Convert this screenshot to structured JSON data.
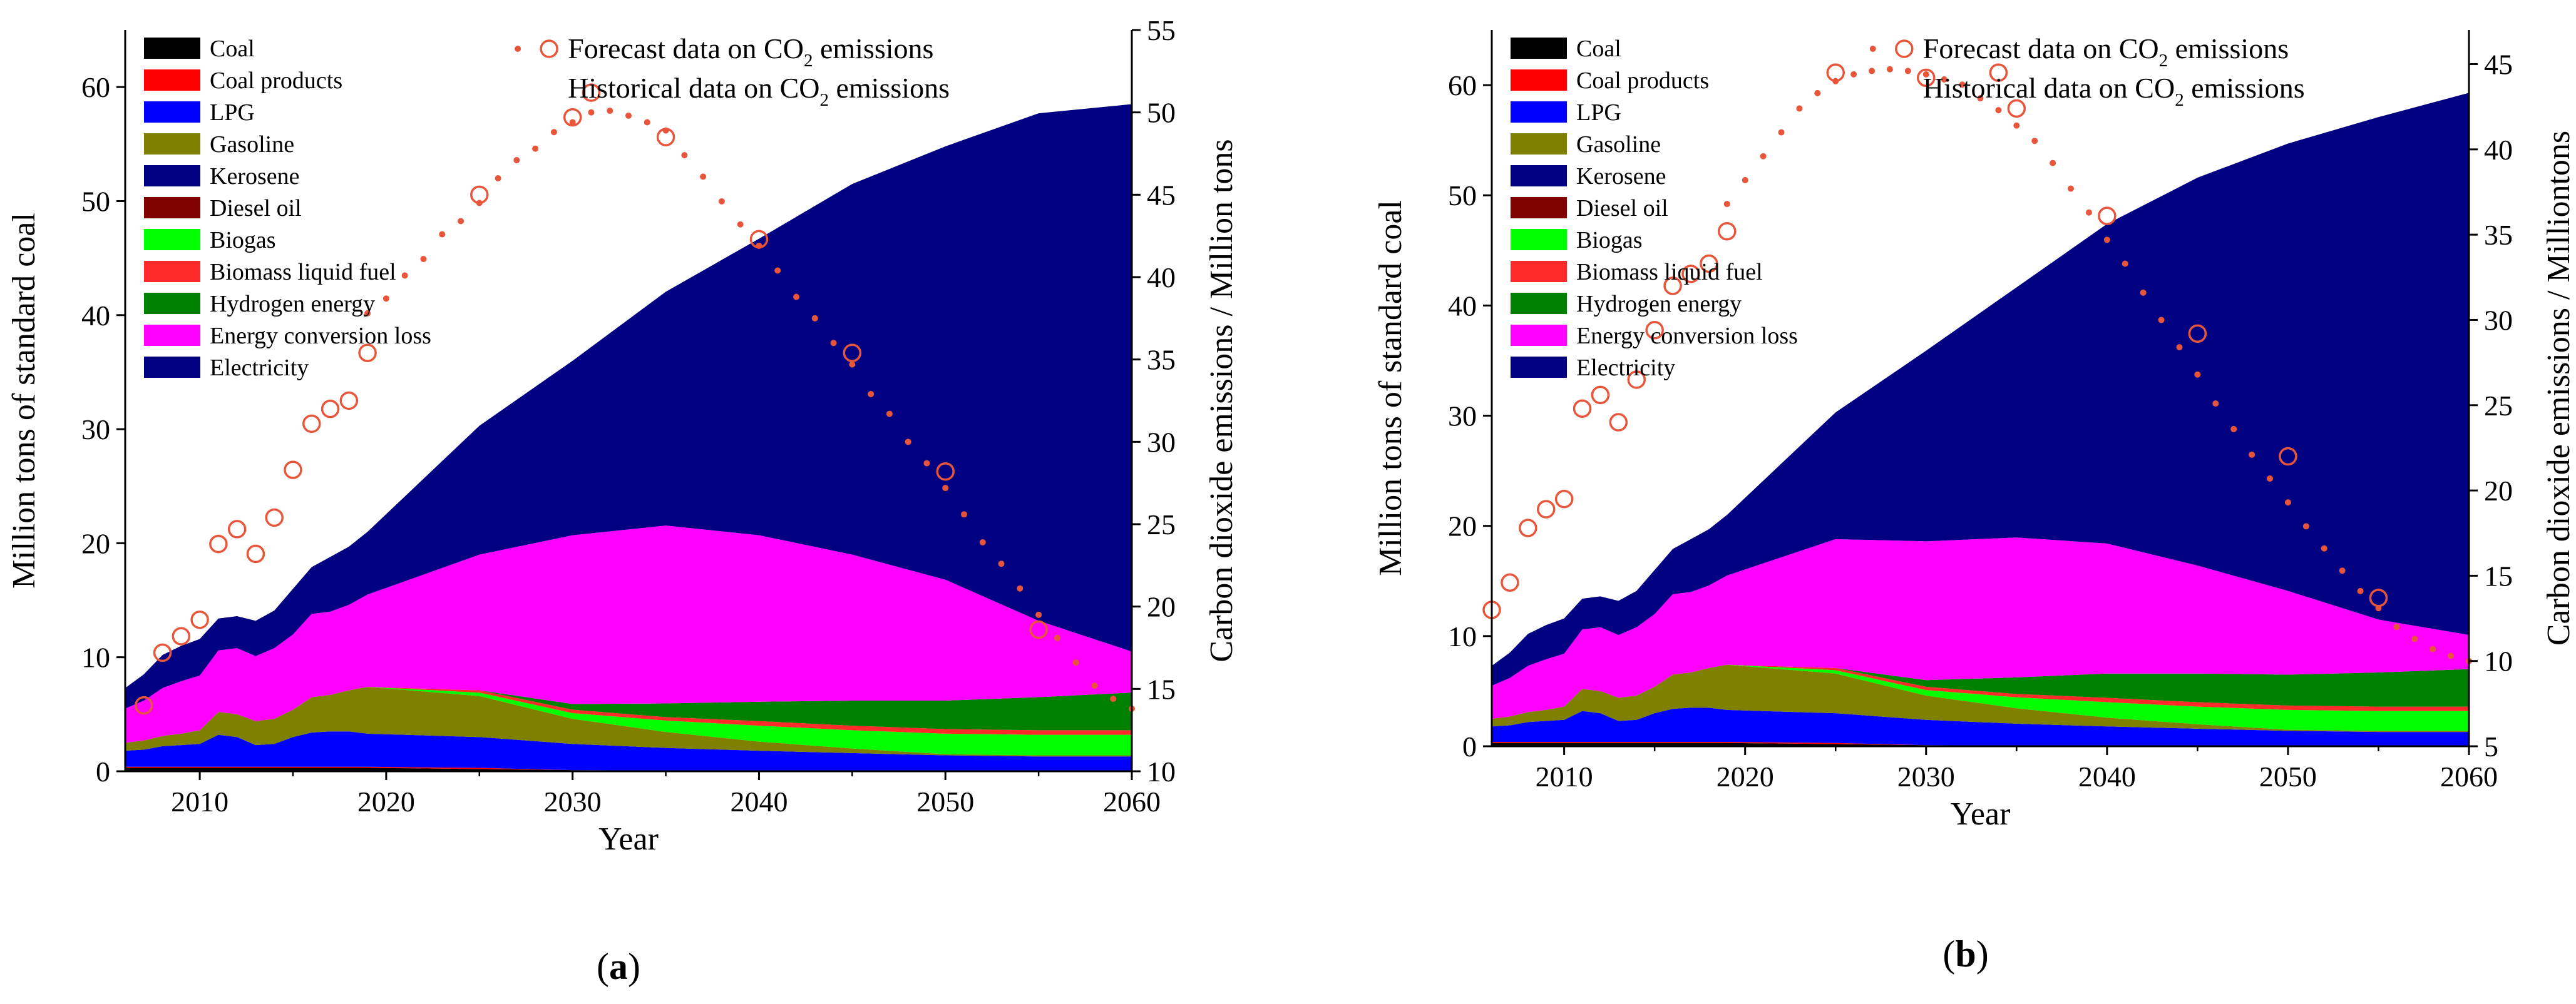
{
  "chart_data": [
    {
      "id": "panel-a",
      "type": "area",
      "panel_label": "a",
      "xlabel": "Year",
      "ylabel": "Million tons of standard coal",
      "y2label": "Carbon dioxide emissions / Million tons",
      "xlim": [
        2006,
        2060
      ],
      "ylim": [
        0,
        65
      ],
      "y2lim": [
        10,
        55
      ],
      "xticks": [
        2010,
        2020,
        2030,
        2040,
        2050,
        2060
      ],
      "yticks": [
        0,
        10,
        20,
        30,
        40,
        50,
        60
      ],
      "y2ticks": [
        10,
        15,
        20,
        25,
        30,
        35,
        40,
        45,
        50,
        55
      ],
      "legend": "top-left",
      "years": [
        2006,
        2007,
        2008,
        2009,
        2010,
        2011,
        2012,
        2013,
        2014,
        2015,
        2016,
        2017,
        2018,
        2019,
        2025,
        2030,
        2035,
        2040,
        2045,
        2050,
        2055,
        2060
      ],
      "series": [
        {
          "name": "Coal",
          "color": "#000000",
          "values": [
            0.3,
            0.3,
            0.3,
            0.3,
            0.3,
            0.3,
            0.3,
            0.3,
            0.3,
            0.3,
            0.3,
            0.3,
            0.3,
            0.3,
            0.2,
            0.1,
            0.05,
            0,
            0,
            0,
            0,
            0
          ]
        },
        {
          "name": "Coal products",
          "color": "#ff0000",
          "values": [
            0.1,
            0.1,
            0.1,
            0.1,
            0.1,
            0.1,
            0.1,
            0.1,
            0.1,
            0.1,
            0.1,
            0.1,
            0.1,
            0.1,
            0.1,
            0,
            0,
            0,
            0,
            0,
            0,
            0
          ]
        },
        {
          "name": "LPG",
          "color": "#0000ff",
          "values": [
            1.4,
            1.5,
            1.8,
            1.9,
            2.0,
            2.8,
            2.6,
            1.9,
            2.0,
            2.6,
            3.0,
            3.1,
            3.1,
            2.9,
            2.7,
            2.3,
            2.0,
            1.8,
            1.6,
            1.4,
            1.3,
            1.3
          ]
        },
        {
          "name": "Gasoline",
          "color": "#808000",
          "values": [
            0.7,
            0.8,
            0.9,
            1.0,
            1.2,
            2.0,
            2.0,
            2.1,
            2.2,
            2.4,
            3.1,
            3.2,
            3.6,
            4.1,
            3.6,
            2.2,
            1.4,
            0.8,
            0.4,
            0.1,
            0.1,
            0.1
          ]
        },
        {
          "name": "Kerosene",
          "color": "#000080",
          "values": [
            0,
            0,
            0,
            0,
            0,
            0,
            0,
            0,
            0,
            0,
            0,
            0,
            0,
            0,
            0,
            0,
            0,
            0,
            0,
            0,
            0,
            0
          ]
        },
        {
          "name": "Diesel oil",
          "color": "#800000",
          "values": [
            0,
            0,
            0,
            0,
            0,
            0,
            0,
            0,
            0,
            0,
            0,
            0,
            0,
            0,
            0,
            0,
            0,
            0,
            0,
            0,
            0,
            0
          ]
        },
        {
          "name": "Biogas",
          "color": "#00ff00",
          "values": [
            0,
            0,
            0,
            0,
            0,
            0,
            0,
            0,
            0,
            0,
            0,
            0,
            0,
            0,
            0.3,
            0.5,
            1.0,
            1.4,
            1.6,
            1.8,
            1.8,
            1.8
          ]
        },
        {
          "name": "Biomass liquid fuel",
          "color": "#ff2a2a",
          "values": [
            0,
            0,
            0,
            0,
            0,
            0,
            0,
            0,
            0,
            0,
            0,
            0,
            0,
            0,
            0.2,
            0.3,
            0.3,
            0.4,
            0.4,
            0.4,
            0.4,
            0.4
          ]
        },
        {
          "name": "Hydrogen energy",
          "color": "#008000",
          "values": [
            0,
            0,
            0,
            0,
            0,
            0,
            0,
            0,
            0,
            0,
            0,
            0,
            0,
            0,
            0,
            0.5,
            1.2,
            1.7,
            2.2,
            2.5,
            2.9,
            3.3
          ]
        },
        {
          "name": "Energy conversion loss",
          "color": "#ff00ff",
          "values": [
            3.0,
            3.5,
            4.2,
            4.6,
            4.8,
            5.4,
            5.8,
            5.7,
            6.2,
            6.6,
            7.3,
            7.3,
            7.5,
            8.1,
            11.9,
            14.8,
            15.6,
            14.6,
            12.8,
            10.6,
            6.7,
            3.6
          ]
        },
        {
          "name": "Electricity",
          "color": "#000080",
          "values": [
            1.8,
            2.3,
            2.9,
            3.1,
            3.2,
            2.8,
            2.8,
            3.1,
            3.3,
            4.0,
            4.1,
            4.8,
            5.1,
            5.5,
            11.3,
            15.3,
            20.5,
            26.0,
            32.5,
            38.0,
            44.5,
            48.0
          ]
        }
      ],
      "co2_forecast": {
        "name": "Forecast data on CO2 emissions",
        "color": "#e8553a",
        "x": [
          2019,
          2020,
          2021,
          2022,
          2023,
          2024,
          2025,
          2026,
          2027,
          2028,
          2029,
          2030,
          2031,
          2032,
          2033,
          2034,
          2035,
          2036,
          2037,
          2038,
          2039,
          2040,
          2041,
          2042,
          2043,
          2044,
          2045,
          2046,
          2047,
          2048,
          2049,
          2050,
          2051,
          2052,
          2053,
          2054,
          2055,
          2056,
          2057,
          2058,
          2059,
          2060
        ],
        "y": [
          37.8,
          38.7,
          40.1,
          41.1,
          42.6,
          43.4,
          44.5,
          46.0,
          47.1,
          47.8,
          48.8,
          49.4,
          50.0,
          50.1,
          49.8,
          49.4,
          48.9,
          47.4,
          46.1,
          44.6,
          43.2,
          41.9,
          40.4,
          38.8,
          37.5,
          36.0,
          34.7,
          32.9,
          31.7,
          30.0,
          28.7,
          27.2,
          25.6,
          23.9,
          22.6,
          21.1,
          19.5,
          18.1,
          16.6,
          15.2,
          14.4,
          13.8
        ]
      },
      "co2_historical": {
        "name": "Historical data on CO2 emissions",
        "color": "#e8553a",
        "x": [
          2007,
          2008,
          2009,
          2010,
          2011,
          2012,
          2013,
          2014,
          2015,
          2016,
          2017,
          2018,
          2019,
          2025,
          2030,
          2031,
          2035,
          2040,
          2045,
          2050,
          2055
        ],
        "y": [
          14.0,
          17.2,
          18.2,
          19.2,
          23.8,
          24.7,
          23.2,
          25.4,
          28.3,
          31.1,
          32.0,
          32.5,
          35.4,
          45.0,
          49.7,
          51.2,
          48.5,
          42.3,
          35.4,
          28.2,
          18.6
        ]
      }
    },
    {
      "id": "panel-b",
      "type": "area",
      "panel_label": "b",
      "xlabel": "Year",
      "ylabel": "Million tons of standard coal",
      "y2label": "Carbon dioxide emissions / Milliontons",
      "xlim": [
        2006,
        2060
      ],
      "ylim": [
        0,
        65
      ],
      "y2lim": [
        5,
        47
      ],
      "xticks": [
        2010,
        2020,
        2030,
        2040,
        2050,
        2060
      ],
      "yticks": [
        0,
        10,
        20,
        30,
        40,
        50,
        60
      ],
      "y2ticks": [
        5,
        10,
        15,
        20,
        25,
        30,
        35,
        40,
        45
      ],
      "legend": "top-left",
      "years": [
        2006,
        2007,
        2008,
        2009,
        2010,
        2011,
        2012,
        2013,
        2014,
        2015,
        2016,
        2017,
        2018,
        2019,
        2025,
        2030,
        2035,
        2040,
        2045,
        2050,
        2055,
        2060
      ],
      "series": [
        {
          "name": "Coal",
          "color": "#000000",
          "values": [
            0.3,
            0.3,
            0.3,
            0.3,
            0.3,
            0.3,
            0.3,
            0.3,
            0.3,
            0.3,
            0.3,
            0.3,
            0.3,
            0.3,
            0.2,
            0.1,
            0.05,
            0,
            0,
            0,
            0,
            0
          ]
        },
        {
          "name": "Coal products",
          "color": "#ff0000",
          "values": [
            0.1,
            0.1,
            0.1,
            0.1,
            0.1,
            0.1,
            0.1,
            0.1,
            0.1,
            0.1,
            0.1,
            0.1,
            0.1,
            0.1,
            0.1,
            0,
            0,
            0,
            0,
            0,
            0,
            0
          ]
        },
        {
          "name": "LPG",
          "color": "#0000ff",
          "values": [
            1.4,
            1.5,
            1.8,
            1.9,
            2.0,
            2.8,
            2.6,
            1.9,
            2.0,
            2.6,
            3.0,
            3.1,
            3.1,
            2.9,
            2.7,
            2.3,
            2.0,
            1.8,
            1.6,
            1.4,
            1.3,
            1.3
          ]
        },
        {
          "name": "Gasoline",
          "color": "#808000",
          "values": [
            0.7,
            0.8,
            0.9,
            1.0,
            1.2,
            2.0,
            2.0,
            2.1,
            2.2,
            2.4,
            3.1,
            3.2,
            3.6,
            4.1,
            3.6,
            2.2,
            1.4,
            0.8,
            0.4,
            0.1,
            0.1,
            0.1
          ]
        },
        {
          "name": "Kerosene",
          "color": "#000080",
          "values": [
            0,
            0,
            0,
            0,
            0,
            0,
            0,
            0,
            0,
            0,
            0,
            0,
            0,
            0,
            0,
            0,
            0,
            0,
            0,
            0,
            0,
            0
          ]
        },
        {
          "name": "Diesel oil",
          "color": "#800000",
          "values": [
            0,
            0,
            0,
            0,
            0,
            0,
            0,
            0,
            0,
            0,
            0,
            0,
            0,
            0,
            0,
            0,
            0,
            0,
            0,
            0,
            0,
            0
          ]
        },
        {
          "name": "Biogas",
          "color": "#00ff00",
          "values": [
            0,
            0,
            0,
            0,
            0,
            0,
            0,
            0,
            0,
            0,
            0,
            0,
            0,
            0,
            0.3,
            0.5,
            1.0,
            1.4,
            1.6,
            1.8,
            1.8,
            1.8
          ]
        },
        {
          "name": "Biomass liquid fuel",
          "color": "#ff2a2a",
          "values": [
            0,
            0,
            0,
            0,
            0,
            0,
            0,
            0,
            0,
            0,
            0,
            0,
            0,
            0,
            0.2,
            0.3,
            0.3,
            0.4,
            0.4,
            0.4,
            0.4,
            0.4
          ]
        },
        {
          "name": "Hydrogen energy",
          "color": "#008000",
          "values": [
            0,
            0,
            0,
            0,
            0,
            0,
            0,
            0,
            0,
            0,
            0,
            0,
            0,
            0,
            0,
            0.6,
            1.5,
            2.2,
            2.6,
            2.8,
            3.1,
            3.4
          ]
        },
        {
          "name": "Energy conversion loss",
          "color": "#ff00ff",
          "values": [
            3.0,
            3.5,
            4.2,
            4.6,
            4.8,
            5.4,
            5.8,
            5.7,
            6.2,
            6.6,
            7.3,
            7.3,
            7.5,
            8.1,
            11.7,
            12.6,
            12.7,
            11.8,
            9.8,
            7.6,
            4.8,
            3.1
          ]
        },
        {
          "name": "Electricity",
          "color": "#000080",
          "values": [
            1.8,
            2.3,
            2.9,
            3.1,
            3.2,
            2.8,
            2.8,
            3.1,
            3.3,
            4.0,
            4.1,
            4.8,
            5.1,
            5.5,
            11.5,
            17.3,
            22.7,
            29.0,
            35.2,
            40.6,
            45.6,
            49.2
          ]
        }
      ],
      "co2_forecast": {
        "name": "Forecast data on CO2 emissions",
        "color": "#e8553a",
        "x": [
          2019,
          2020,
          2021,
          2022,
          2023,
          2024,
          2025,
          2026,
          2027,
          2028,
          2029,
          2030,
          2031,
          2032,
          2033,
          2034,
          2035,
          2036,
          2037,
          2038,
          2039,
          2040,
          2041,
          2042,
          2043,
          2044,
          2045,
          2046,
          2047,
          2048,
          2049,
          2050,
          2051,
          2052,
          2053,
          2054,
          2055,
          2056,
          2057,
          2058,
          2059,
          2060
        ],
        "y": [
          36.8,
          38.2,
          39.6,
          41.0,
          42.4,
          43.3,
          44.0,
          44.4,
          44.6,
          44.7,
          44.6,
          44.4,
          44.1,
          43.8,
          43.0,
          42.3,
          41.4,
          40.5,
          39.2,
          37.7,
          36.3,
          34.7,
          33.3,
          31.6,
          30.0,
          28.4,
          26.8,
          25.1,
          23.6,
          22.1,
          20.7,
          19.3,
          17.9,
          16.6,
          15.3,
          14.1,
          13.1,
          12.0,
          11.3,
          10.7,
          10.3,
          10.0
        ]
      },
      "co2_historical": {
        "name": "Historical data on CO2 emissions",
        "color": "#e8553a",
        "x": [
          2006,
          2007,
          2008,
          2009,
          2010,
          2011,
          2012,
          2013,
          2014,
          2015,
          2016,
          2017,
          2018,
          2019,
          2025,
          2030,
          2034,
          2035,
          2040,
          2045,
          2050,
          2055
        ],
        "y": [
          13.0,
          14.6,
          17.8,
          18.9,
          19.5,
          24.8,
          25.6,
          24.0,
          26.5,
          29.4,
          32.0,
          32.7,
          33.3,
          35.2,
          44.5,
          44.2,
          44.5,
          42.4,
          36.1,
          29.2,
          22.0,
          13.7
        ]
      }
    }
  ]
}
